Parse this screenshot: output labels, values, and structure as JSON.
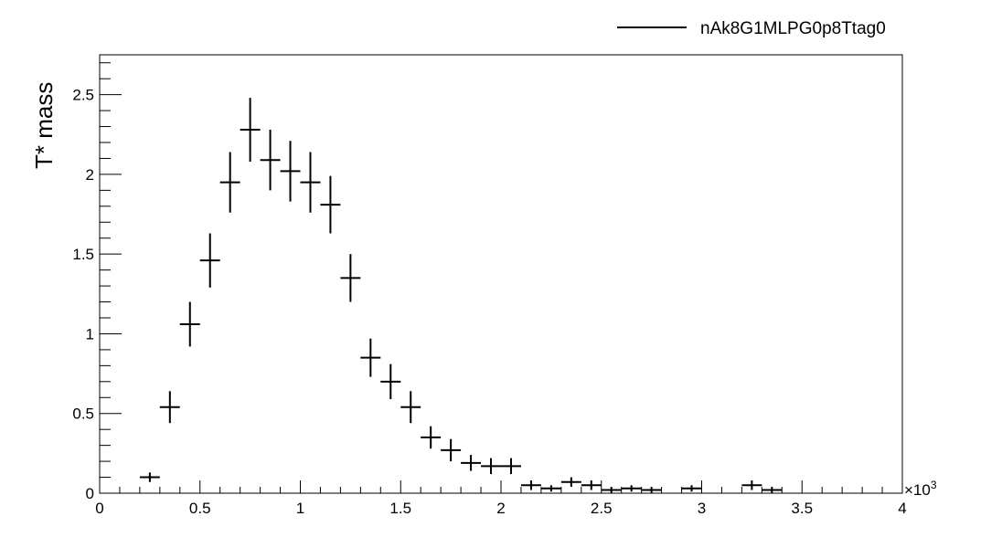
{
  "chart_data": {
    "type": "scatter",
    "style": "histogram-error-bars",
    "title": "",
    "xlabel": "",
    "ylabel": "T* mass",
    "x_multiplier": "×10",
    "x_multiplier_exponent": "3",
    "xlim": [
      0,
      4
    ],
    "ylim": [
      0,
      2.75
    ],
    "grid": false,
    "legend_position": "top-right",
    "series_color": "#000000",
    "x_ticks": [
      "0",
      "0.5",
      "1",
      "1.5",
      "2",
      "2.5",
      "3",
      "3.5",
      "4"
    ],
    "y_ticks": [
      "0",
      "0.5",
      "1",
      "1.5",
      "2",
      "2.5"
    ],
    "series": [
      {
        "name": "nAk8G1MLPG0p8Ttag0",
        "bin_half_width": 0.05,
        "x": [
          0.25,
          0.35,
          0.45,
          0.55,
          0.65,
          0.75,
          0.85,
          0.95,
          1.05,
          1.15,
          1.25,
          1.35,
          1.45,
          1.55,
          1.65,
          1.75,
          1.85,
          1.95,
          2.05,
          2.15,
          2.25,
          2.35,
          2.45,
          2.55,
          2.65,
          2.75,
          2.95,
          3.25,
          3.35
        ],
        "y": [
          0.1,
          0.54,
          1.06,
          1.46,
          1.95,
          2.28,
          2.09,
          2.02,
          1.95,
          1.81,
          1.35,
          0.85,
          0.7,
          0.54,
          0.35,
          0.27,
          0.19,
          0.17,
          0.17,
          0.05,
          0.03,
          0.07,
          0.05,
          0.02,
          0.03,
          0.02,
          0.03,
          0.05,
          0.02
        ],
        "err": [
          0.03,
          0.1,
          0.14,
          0.17,
          0.19,
          0.2,
          0.19,
          0.19,
          0.19,
          0.18,
          0.15,
          0.12,
          0.11,
          0.1,
          0.07,
          0.07,
          0.05,
          0.05,
          0.05,
          0.03,
          0.02,
          0.03,
          0.03,
          0.02,
          0.02,
          0.02,
          0.02,
          0.03,
          0.02
        ]
      }
    ]
  }
}
